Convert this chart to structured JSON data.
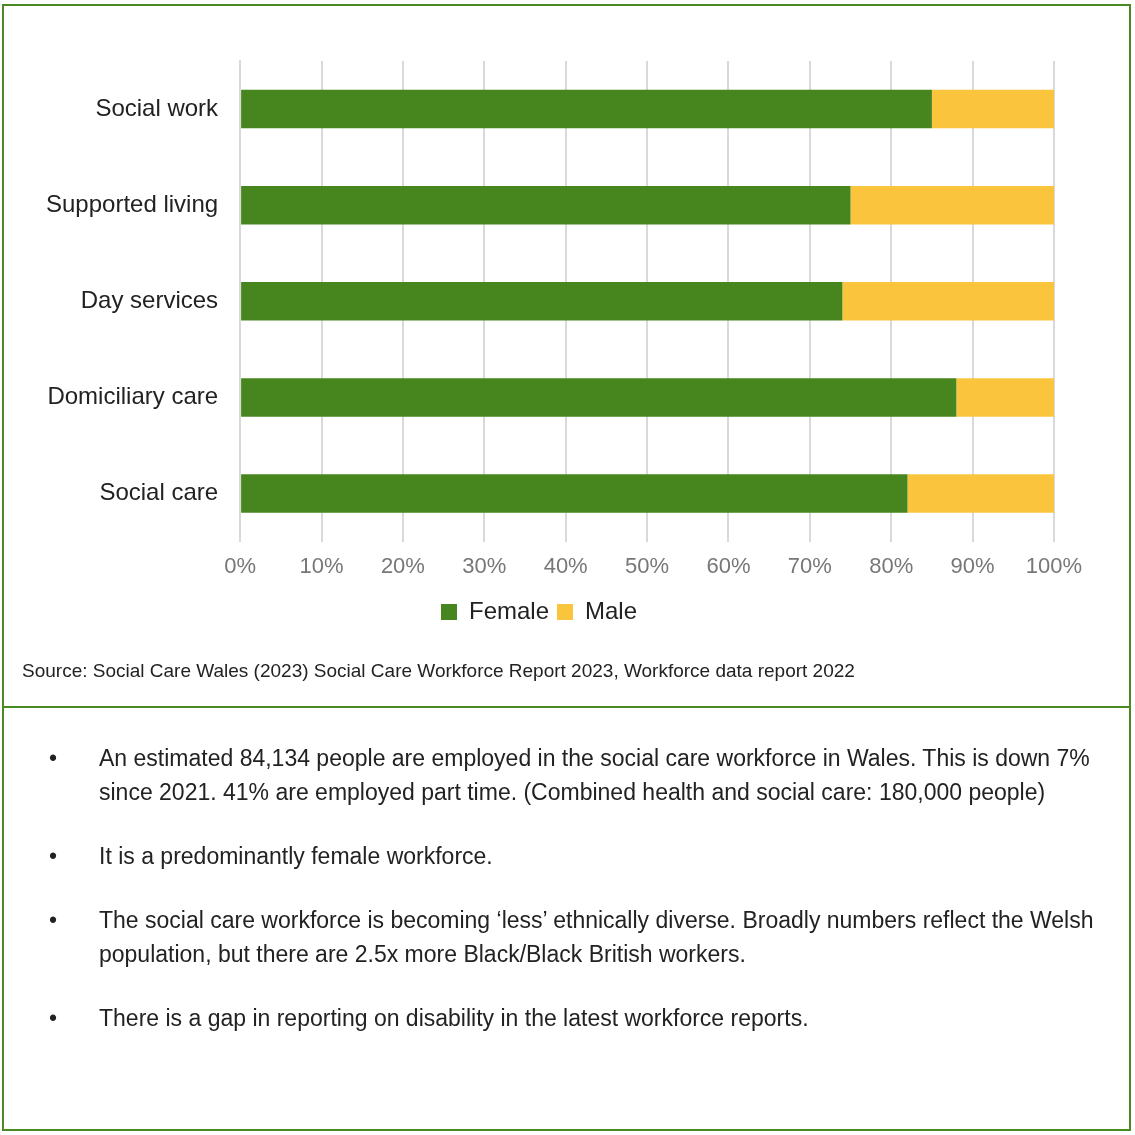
{
  "chart_data": {
    "type": "bar",
    "orientation": "horizontal",
    "stacked": true,
    "categories": [
      "Social work",
      "Supported living",
      "Day services",
      "Domiciliary care",
      "Social care"
    ],
    "series": [
      {
        "name": "Female",
        "color": "#47861e",
        "values": [
          85,
          75,
          74,
          88,
          82
        ]
      },
      {
        "name": "Male",
        "color": "#fbc43d",
        "values": [
          15,
          25,
          26,
          12,
          18
        ]
      }
    ],
    "xlim": [
      0,
      100
    ],
    "xticks": [
      {
        "value": 0,
        "label": "0%"
      },
      {
        "value": 10,
        "label": "10%"
      },
      {
        "value": 20,
        "label": "20%"
      },
      {
        "value": 30,
        "label": "30%"
      },
      {
        "value": 40,
        "label": "40%"
      },
      {
        "value": 50,
        "label": "50%"
      },
      {
        "value": 60,
        "label": "60%"
      },
      {
        "value": 70,
        "label": "70%"
      },
      {
        "value": 80,
        "label": "80%"
      },
      {
        "value": 90,
        "label": "90%"
      },
      {
        "value": 100,
        "label": "100%"
      }
    ],
    "grid": "x",
    "legend": "bottom",
    "annotations": [
      "Source: Social Care Wales (2023) Social Care Workforce Report 2023, Workforce data report 2022",
      "• An estimated 84,134 people are employed in the social care workforce in Wales. This is down 7% since 2021. 41% are employed part time. (Combined health and social care: 180,000 people)",
      "• It is a predominantly female workforce.",
      "• The social care workforce is becoming ‘less’ ethnically diverse. Broadly numbers reflect the Welsh population, but there are 2.5x more Black/Black British workers.",
      "• There is a gap in reporting on disability in the latest workforce reports."
    ]
  }
}
